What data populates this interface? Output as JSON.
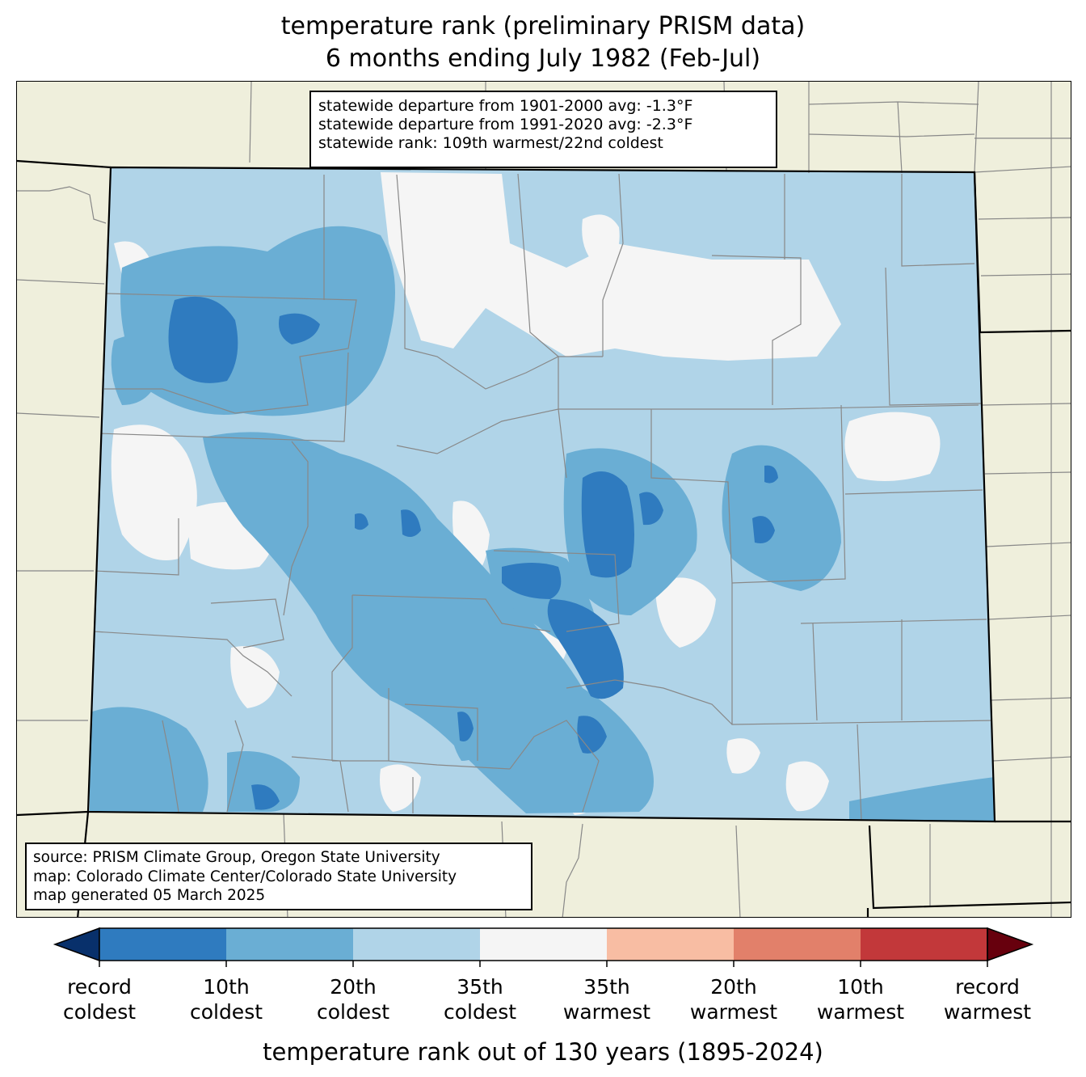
{
  "title": {
    "line1": "temperature rank (preliminary PRISM data)",
    "line2": "6 months ending July 1982 (Feb-Jul)"
  },
  "stats": {
    "line1": "statewide departure from 1901-2000 avg: -1.3°F",
    "line2": "statewide departure from 1991-2020 avg: -2.3°F",
    "line3": "statewide rank: 109th warmest/22nd coldest"
  },
  "source": {
    "line1": "source: PRISM Climate Group, Oregon State University",
    "line2": "map: Colorado Climate Center/Colorado State University",
    "line3": "map generated 05 March 2025"
  },
  "legend": {
    "axis_label": "temperature rank out of 130 years (1895-2024)",
    "ticks": [
      {
        "top": "record",
        "bottom": "coldest"
      },
      {
        "top": "10th",
        "bottom": "coldest"
      },
      {
        "top": "20th",
        "bottom": "coldest"
      },
      {
        "top": "35th",
        "bottom": "coldest"
      },
      {
        "top": "35th",
        "bottom": "warmest"
      },
      {
        "top": "20th",
        "bottom": "warmest"
      },
      {
        "top": "10th",
        "bottom": "warmest"
      },
      {
        "top": "record",
        "bottom": "warmest"
      }
    ],
    "colors": {
      "below_record_coldest": "#08306b",
      "record_to_10th_coldest": "#2f7bbf",
      "10th_to_20th_coldest": "#6aaed4",
      "20th_to_35th_coldest": "#b0d4e8",
      "near_normal": "#f5f5f5",
      "35th_to_20th_warmest": "#f8bda3",
      "20th_to_10th_warmest": "#e2806a",
      "10th_to_record_warmest": "#c2383a",
      "above_record_warmest": "#67000d"
    }
  },
  "map": {
    "background_color": "#efefdc",
    "state_border_color": "#000000",
    "county_line_color": "#888888"
  }
}
